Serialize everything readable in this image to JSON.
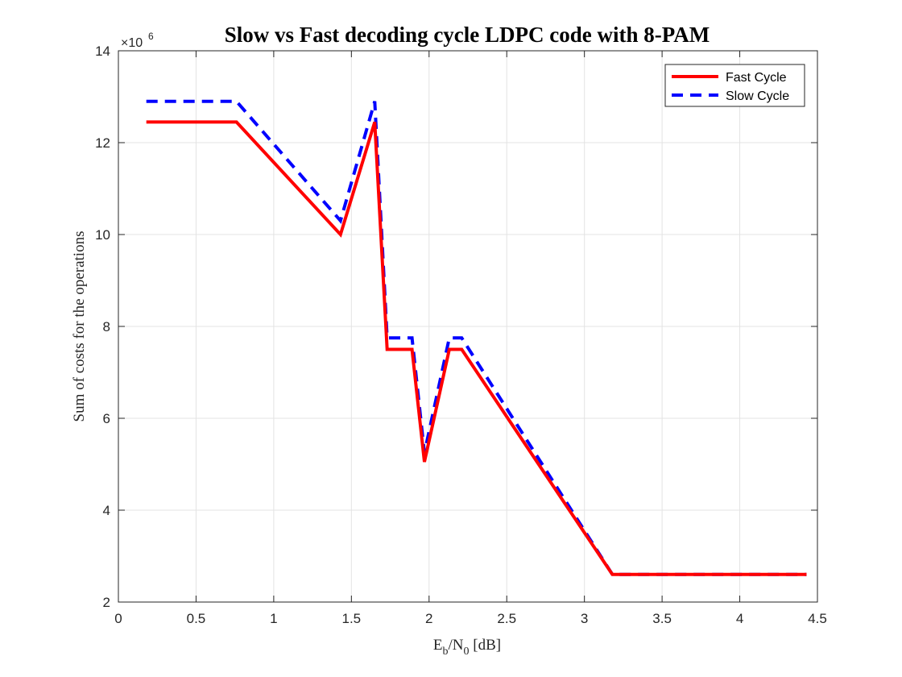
{
  "chart_data": {
    "type": "line",
    "title": "Slow vs Fast decoding cycle LDPC code with 8-PAM",
    "xlabel": {
      "base": "E",
      "sub1": "b",
      "mid": "/N",
      "sub2": "0",
      "tail": " [dB]"
    },
    "ylabel": "Sum of costs for the operations",
    "y_exponent": {
      "base": "×10",
      "power": "6"
    },
    "xlim": [
      0,
      4.5
    ],
    "ylim": [
      2,
      14
    ],
    "xticks": [
      0,
      0.5,
      1,
      1.5,
      2,
      2.5,
      3,
      3.5,
      4,
      4.5
    ],
    "xtick_labels": [
      "0",
      "0.5",
      "1",
      "1.5",
      "2",
      "2.5",
      "3",
      "3.5",
      "4",
      "4.5"
    ],
    "yticks": [
      2,
      4,
      6,
      8,
      10,
      12,
      14
    ],
    "ytick_labels": [
      "2",
      "4",
      "6",
      "8",
      "10",
      "12",
      "14"
    ],
    "grid": true,
    "legend_position": "top-right",
    "series": [
      {
        "name": "Fast Cycle",
        "color": "#ff0000",
        "style": "solid",
        "x": [
          0.18,
          0.76,
          1.43,
          1.65,
          1.73,
          1.89,
          1.97,
          2.13,
          2.21,
          3.18,
          4.43
        ],
        "y": [
          12.45,
          12.45,
          10.0,
          12.45,
          7.5,
          7.5,
          5.05,
          7.5,
          7.5,
          2.6,
          2.6
        ]
      },
      {
        "name": "Slow Cycle",
        "color": "#0000ff",
        "style": "dashed",
        "x": [
          0.18,
          0.76,
          1.43,
          1.65,
          1.73,
          1.89,
          1.97,
          2.13,
          2.21,
          3.18,
          4.43
        ],
        "y": [
          12.9,
          12.9,
          10.3,
          12.9,
          7.75,
          7.75,
          5.25,
          7.75,
          7.75,
          2.6,
          2.6
        ]
      }
    ]
  }
}
